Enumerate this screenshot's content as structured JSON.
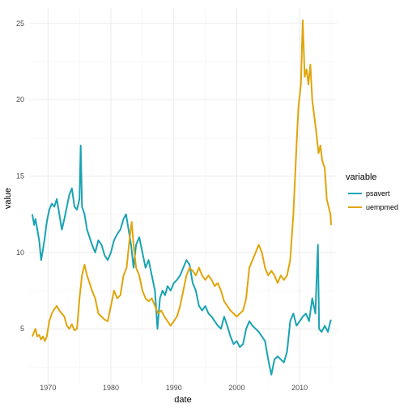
{
  "chart_data": {
    "type": "line",
    "title": "",
    "xlabel": "date",
    "ylabel": "value",
    "xlim": [
      1967.0,
      2015.9
    ],
    "ylim": [
      1.3,
      26.0
    ],
    "x_ticks": [
      1970,
      1980,
      1990,
      2000,
      2010
    ],
    "x_tick_labels": [
      "1970",
      "1980",
      "1990",
      "2000",
      "2010"
    ],
    "y_ticks": [
      5,
      10,
      15,
      20,
      25
    ],
    "y_tick_labels": [
      "5",
      "10",
      "15",
      "20",
      "25"
    ],
    "grid": true,
    "legend": {
      "title": "variable",
      "position": "right"
    },
    "series": [
      {
        "name": "psavert",
        "color": "#1aa3b3",
        "points": [
          [
            1967.5,
            12.5
          ],
          [
            1967.8,
            11.8
          ],
          [
            1968.0,
            12.2
          ],
          [
            1968.3,
            11.5
          ],
          [
            1968.6,
            10.8
          ],
          [
            1968.9,
            9.5
          ],
          [
            1969.2,
            10.2
          ],
          [
            1969.5,
            11.0
          ],
          [
            1969.8,
            12.0
          ],
          [
            1970.2,
            12.8
          ],
          [
            1970.6,
            13.2
          ],
          [
            1971.0,
            13.0
          ],
          [
            1971.4,
            13.5
          ],
          [
            1971.8,
            12.5
          ],
          [
            1972.2,
            11.5
          ],
          [
            1972.6,
            12.2
          ],
          [
            1973.0,
            13.0
          ],
          [
            1973.4,
            13.8
          ],
          [
            1973.8,
            14.2
          ],
          [
            1974.2,
            13.0
          ],
          [
            1974.6,
            12.8
          ],
          [
            1975.0,
            13.5
          ],
          [
            1975.2,
            17.0
          ],
          [
            1975.4,
            13.0
          ],
          [
            1975.8,
            12.5
          ],
          [
            1976.2,
            11.5
          ],
          [
            1976.6,
            11.0
          ],
          [
            1977.0,
            10.5
          ],
          [
            1977.5,
            10.0
          ],
          [
            1978.0,
            10.8
          ],
          [
            1978.5,
            10.5
          ],
          [
            1979.0,
            9.8
          ],
          [
            1979.5,
            9.5
          ],
          [
            1980.0,
            10.0
          ],
          [
            1980.5,
            10.8
          ],
          [
            1981.0,
            11.2
          ],
          [
            1981.5,
            11.5
          ],
          [
            1982.0,
            12.2
          ],
          [
            1982.4,
            12.5
          ],
          [
            1982.8,
            11.5
          ],
          [
            1983.2,
            10.5
          ],
          [
            1983.6,
            9.0
          ],
          [
            1984.0,
            10.5
          ],
          [
            1984.5,
            11.0
          ],
          [
            1985.0,
            10.0
          ],
          [
            1985.5,
            9.0
          ],
          [
            1986.0,
            9.5
          ],
          [
            1986.5,
            8.5
          ],
          [
            1987.0,
            7.5
          ],
          [
            1987.4,
            5.0
          ],
          [
            1987.8,
            7.0
          ],
          [
            1988.2,
            7.5
          ],
          [
            1988.6,
            7.2
          ],
          [
            1989.0,
            7.8
          ],
          [
            1989.5,
            7.5
          ],
          [
            1990.0,
            8.0
          ],
          [
            1990.5,
            8.2
          ],
          [
            1991.0,
            8.5
          ],
          [
            1991.5,
            9.0
          ],
          [
            1992.0,
            9.5
          ],
          [
            1992.5,
            9.2
          ],
          [
            1993.0,
            8.0
          ],
          [
            1993.5,
            7.5
          ],
          [
            1994.0,
            6.5
          ],
          [
            1994.5,
            6.2
          ],
          [
            1995.0,
            6.5
          ],
          [
            1995.5,
            6.0
          ],
          [
            1996.0,
            5.8
          ],
          [
            1996.5,
            5.5
          ],
          [
            1997.0,
            5.2
          ],
          [
            1997.5,
            5.0
          ],
          [
            1998.0,
            5.8
          ],
          [
            1998.5,
            5.2
          ],
          [
            1999.0,
            4.5
          ],
          [
            1999.5,
            4.0
          ],
          [
            2000.0,
            4.2
          ],
          [
            2000.5,
            3.8
          ],
          [
            2001.0,
            4.0
          ],
          [
            2001.5,
            5.0
          ],
          [
            2002.0,
            5.5
          ],
          [
            2002.5,
            5.2
          ],
          [
            2003.0,
            5.0
          ],
          [
            2003.5,
            4.8
          ],
          [
            2004.0,
            4.5
          ],
          [
            2004.5,
            4.2
          ],
          [
            2005.0,
            3.0
          ],
          [
            2005.5,
            2.0
          ],
          [
            2006.0,
            3.0
          ],
          [
            2006.5,
            3.2
          ],
          [
            2007.0,
            3.0
          ],
          [
            2007.5,
            2.8
          ],
          [
            2008.0,
            3.5
          ],
          [
            2008.5,
            5.5
          ],
          [
            2009.0,
            6.0
          ],
          [
            2009.5,
            5.2
          ],
          [
            2010.0,
            5.5
          ],
          [
            2010.5,
            5.8
          ],
          [
            2011.0,
            6.0
          ],
          [
            2011.5,
            5.5
          ],
          [
            2012.0,
            7.0
          ],
          [
            2012.5,
            6.0
          ],
          [
            2012.9,
            10.5
          ],
          [
            2013.1,
            5.0
          ],
          [
            2013.5,
            4.8
          ],
          [
            2014.0,
            5.2
          ],
          [
            2014.5,
            4.8
          ],
          [
            2014.9,
            5.5
          ],
          [
            2015.0,
            5.6
          ]
        ]
      },
      {
        "name": "uempmed",
        "color": "#e0a50a",
        "points": [
          [
            1967.5,
            4.5
          ],
          [
            1967.8,
            4.8
          ],
          [
            1968.0,
            5.0
          ],
          [
            1968.3,
            4.5
          ],
          [
            1968.6,
            4.6
          ],
          [
            1968.9,
            4.3
          ],
          [
            1969.2,
            4.5
          ],
          [
            1969.5,
            4.2
          ],
          [
            1969.8,
            4.5
          ],
          [
            1970.2,
            5.5
          ],
          [
            1970.6,
            6.0
          ],
          [
            1971.0,
            6.3
          ],
          [
            1971.4,
            6.5
          ],
          [
            1971.8,
            6.2
          ],
          [
            1972.2,
            6.0
          ],
          [
            1972.6,
            5.8
          ],
          [
            1973.0,
            5.2
          ],
          [
            1973.4,
            5.0
          ],
          [
            1973.8,
            5.3
          ],
          [
            1974.2,
            4.9
          ],
          [
            1974.6,
            5.0
          ],
          [
            1975.0,
            7.0
          ],
          [
            1975.4,
            8.5
          ],
          [
            1975.8,
            9.2
          ],
          [
            1976.2,
            8.5
          ],
          [
            1976.6,
            8.0
          ],
          [
            1977.0,
            7.5
          ],
          [
            1977.5,
            7.0
          ],
          [
            1978.0,
            6.0
          ],
          [
            1978.5,
            5.8
          ],
          [
            1979.0,
            5.6
          ],
          [
            1979.5,
            5.5
          ],
          [
            1980.0,
            6.5
          ],
          [
            1980.5,
            7.5
          ],
          [
            1981.0,
            7.0
          ],
          [
            1981.5,
            7.2
          ],
          [
            1982.0,
            8.5
          ],
          [
            1982.5,
            9.0
          ],
          [
            1983.0,
            11.0
          ],
          [
            1983.3,
            12.0
          ],
          [
            1983.6,
            10.5
          ],
          [
            1984.0,
            9.0
          ],
          [
            1984.5,
            8.5
          ],
          [
            1985.0,
            7.5
          ],
          [
            1985.5,
            7.0
          ],
          [
            1986.0,
            6.8
          ],
          [
            1986.5,
            7.0
          ],
          [
            1987.0,
            6.5
          ],
          [
            1987.5,
            6.0
          ],
          [
            1988.0,
            6.2
          ],
          [
            1988.5,
            5.8
          ],
          [
            1989.0,
            5.5
          ],
          [
            1989.5,
            5.2
          ],
          [
            1990.0,
            5.5
          ],
          [
            1990.5,
            5.8
          ],
          [
            1991.0,
            6.5
          ],
          [
            1991.5,
            7.5
          ],
          [
            1992.0,
            8.5
          ],
          [
            1992.5,
            9.0
          ],
          [
            1993.0,
            8.8
          ],
          [
            1993.5,
            8.5
          ],
          [
            1994.0,
            9.0
          ],
          [
            1994.5,
            8.5
          ],
          [
            1995.0,
            8.2
          ],
          [
            1995.5,
            8.5
          ],
          [
            1996.0,
            8.2
          ],
          [
            1996.5,
            7.8
          ],
          [
            1997.0,
            8.0
          ],
          [
            1997.5,
            7.5
          ],
          [
            1998.0,
            6.8
          ],
          [
            1998.5,
            6.5
          ],
          [
            1999.0,
            6.2
          ],
          [
            1999.5,
            6.0
          ],
          [
            2000.0,
            5.8
          ],
          [
            2000.5,
            6.0
          ],
          [
            2001.0,
            6.2
          ],
          [
            2001.5,
            7.0
          ],
          [
            2002.0,
            9.0
          ],
          [
            2002.5,
            9.5
          ],
          [
            2003.0,
            10.0
          ],
          [
            2003.5,
            10.5
          ],
          [
            2004.0,
            10.0
          ],
          [
            2004.5,
            9.0
          ],
          [
            2005.0,
            8.5
          ],
          [
            2005.5,
            8.8
          ],
          [
            2006.0,
            8.5
          ],
          [
            2006.5,
            8.0
          ],
          [
            2007.0,
            8.5
          ],
          [
            2007.5,
            8.2
          ],
          [
            2008.0,
            8.5
          ],
          [
            2008.5,
            9.5
          ],
          [
            2009.0,
            12.5
          ],
          [
            2009.5,
            17.0
          ],
          [
            2009.8,
            19.5
          ],
          [
            2010.2,
            21.0
          ],
          [
            2010.5,
            25.2
          ],
          [
            2010.8,
            21.5
          ],
          [
            2011.1,
            22.0
          ],
          [
            2011.4,
            21.0
          ],
          [
            2011.7,
            22.3
          ],
          [
            2012.0,
            20.0
          ],
          [
            2012.3,
            19.0
          ],
          [
            2012.6,
            18.0
          ],
          [
            2013.0,
            16.5
          ],
          [
            2013.3,
            17.0
          ],
          [
            2013.6,
            16.0
          ],
          [
            2014.0,
            15.5
          ],
          [
            2014.3,
            13.5
          ],
          [
            2014.6,
            13.0
          ],
          [
            2014.9,
            12.5
          ],
          [
            2015.0,
            11.8
          ]
        ]
      }
    ]
  }
}
